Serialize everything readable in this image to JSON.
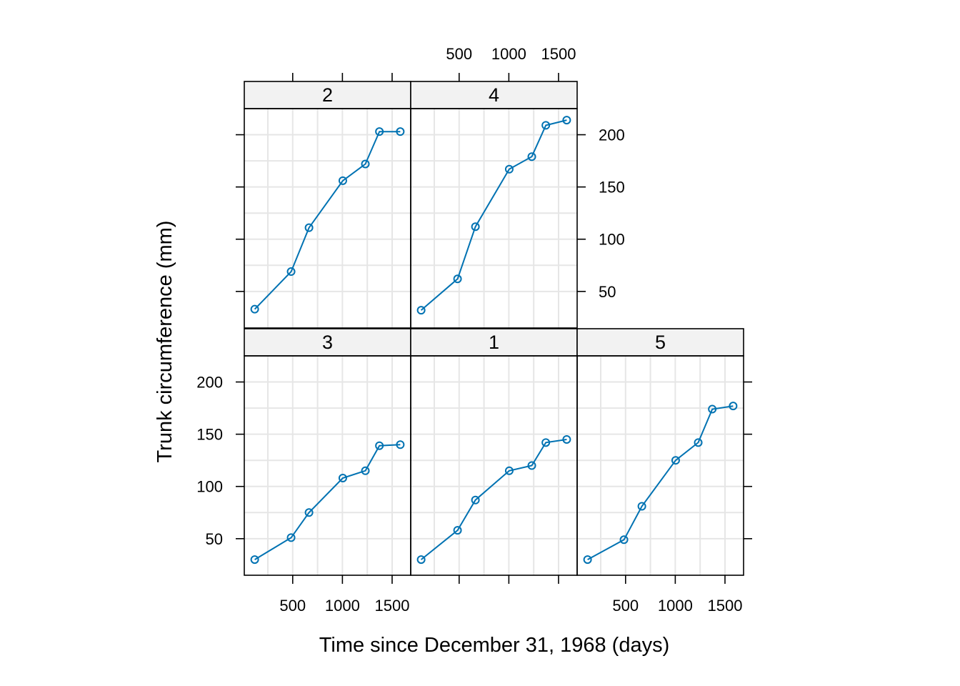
{
  "chart_data": {
    "type": "line",
    "layout": {
      "columns": 3,
      "rows": 2
    },
    "xlabel": "Time since December 31, 1968 (days)",
    "ylabel": "Trunk circumference (mm)",
    "x": [
      118,
      484,
      664,
      1004,
      1231,
      1372,
      1582
    ],
    "xlim": [
      13,
      1687
    ],
    "ylim": [
      15,
      225
    ],
    "x_ticks": [
      500,
      1000,
      1500
    ],
    "y_ticks": [
      50,
      100,
      150,
      200
    ],
    "x_grid": [
      250,
      500,
      750,
      1000,
      1250,
      1500
    ],
    "y_grid": [
      50,
      75,
      100,
      125,
      150,
      175,
      200
    ],
    "grid": true,
    "color": "#0072b2",
    "marker": "open-circle",
    "panels": [
      {
        "label": "3",
        "row": 0,
        "col": 0,
        "values": [
          30,
          51,
          75,
          108,
          115,
          139,
          140
        ]
      },
      {
        "label": "1",
        "row": 0,
        "col": 1,
        "values": [
          30,
          58,
          87,
          115,
          120,
          142,
          145
        ]
      },
      {
        "label": "5",
        "row": 0,
        "col": 2,
        "values": [
          30,
          49,
          81,
          125,
          142,
          174,
          177
        ]
      },
      {
        "label": "2",
        "row": 1,
        "col": 0,
        "values": [
          33,
          69,
          111,
          156,
          172,
          203,
          203
        ]
      },
      {
        "label": "4",
        "row": 1,
        "col": 1,
        "values": [
          32,
          62,
          112,
          167,
          179,
          209,
          214
        ]
      }
    ]
  }
}
